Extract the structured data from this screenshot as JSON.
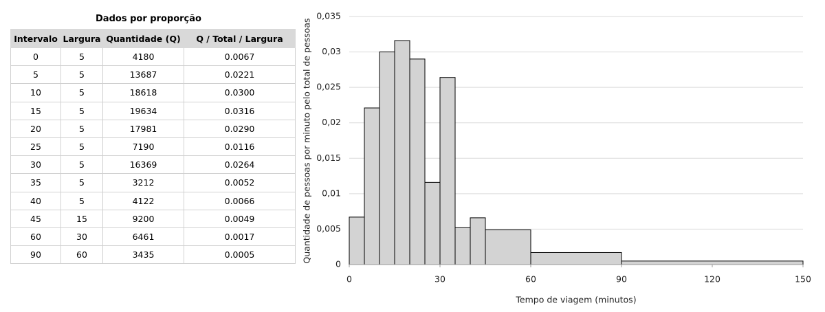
{
  "table": {
    "title": "Dados por proporção",
    "header": [
      "Intervalo",
      "Largura",
      "Quantidade (Q)",
      "Q / Total / Largura"
    ],
    "rows": [
      [
        "0",
        "5",
        "4180",
        "0.0067"
      ],
      [
        "5",
        "5",
        "13687",
        "0.0221"
      ],
      [
        "10",
        "5",
        "18618",
        "0.0300"
      ],
      [
        "15",
        "5",
        "19634",
        "0.0316"
      ],
      [
        "20",
        "5",
        "17981",
        "0.0290"
      ],
      [
        "25",
        "5",
        "7190",
        "0.0116"
      ],
      [
        "30",
        "5",
        "16369",
        "0.0264"
      ],
      [
        "35",
        "5",
        "3212",
        "0.0052"
      ],
      [
        "40",
        "5",
        "4122",
        "0.0066"
      ],
      [
        "45",
        "15",
        "9200",
        "0.0049"
      ],
      [
        "60",
        "30",
        "6461",
        "0.0017"
      ],
      [
        "90",
        "60",
        "3435",
        "0.0005"
      ]
    ]
  },
  "chart_data": {
    "type": "histogram",
    "bins": [
      0,
      5,
      10,
      15,
      20,
      25,
      30,
      35,
      40,
      45,
      60,
      90,
      150
    ],
    "values": [
      0.0067,
      0.0221,
      0.03,
      0.0316,
      0.029,
      0.0116,
      0.0264,
      0.0052,
      0.0066,
      0.0049,
      0.0017,
      0.0005
    ],
    "color": "#d3d3d3",
    "xlabel": "Tempo de viagem (minutos)",
    "ylabel": "Quantidade de pessoas por minuto pelo total de pessoas",
    "xlim": [
      0,
      150
    ],
    "xticks": [
      0,
      30,
      60,
      90,
      120,
      150
    ],
    "ylim": [
      0,
      0.035
    ],
    "yticks": [
      0,
      {
        "value": 0.005,
        "label": "0,005"
      },
      {
        "value": 0.01,
        "label": "0,01"
      },
      {
        "value": 0.015,
        "label": "0,015"
      },
      {
        "value": 0.02,
        "label": "0,02"
      },
      {
        "value": 0.025,
        "label": "0,025"
      },
      {
        "value": 0.03,
        "label": "0,03"
      },
      {
        "value": 0.035,
        "label": "0,035"
      }
    ],
    "grid": true
  }
}
